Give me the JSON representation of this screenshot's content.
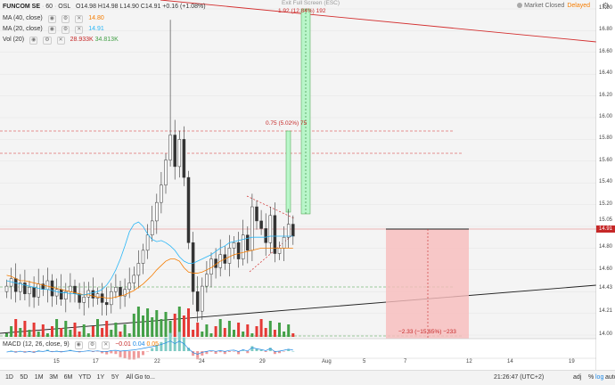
{
  "legend": {
    "symbol": "FUNCOM SE",
    "interval": "60",
    "exchange": "OSL",
    "ohlc": "O14.98  H14.98  L14.90  C14.91  +0.16 (+1.08%)",
    "ma40_label": "MA (40, close)",
    "ma40_value": "14.80",
    "ma20_label": "MA (20, close)",
    "ma20_value": "14.91",
    "vol_label": "Vol (20)",
    "vol_value1": "28.933K",
    "vol_value2": "34.813K",
    "macd_label": "MACD (12, 26, close, 9)",
    "macd_v1": "−0.01",
    "macd_v2": "0.04",
    "macd_v3": "0.05"
  },
  "status": {
    "market": "Market Closed",
    "delayed": "Delayed"
  },
  "y_axis_labels": [
    "17.00",
    "16.80",
    "16.60",
    "16.40",
    "16.20",
    "16.00",
    "15.80",
    "15.60",
    "15.40",
    "15.20",
    "15.05",
    "14.80",
    "14.60",
    "14.43",
    "14.21",
    "14.00"
  ],
  "current_price": "14.91",
  "x_axis_labels": [
    "15",
    "17",
    "22",
    "24",
    "29",
    "Aug",
    "5",
    "7",
    "12",
    "14",
    "19"
  ],
  "annotations": {
    "exit": "Exit Full Screen (ESC)",
    "long1": "1.92 (12.84%) 192",
    "long2": "0.75 (5.02%) 75",
    "short": "−2.33 (−15.65%) −233"
  },
  "bottombar": {
    "timeframes": [
      "1D",
      "5D",
      "1M",
      "3M",
      "6M",
      "YTD",
      "1Y",
      "5Y",
      "All"
    ],
    "goto": "Go to...",
    "clock": "21:26:47 (UTC+2)",
    "options": [
      "%",
      "log",
      "auto"
    ],
    "adj": "adj"
  },
  "colors": {
    "up": "#2e7d32",
    "down": "#c62828",
    "ma40": "#f57c00",
    "ma20": "#29b6f6",
    "vol_up": "#43a047",
    "vol_down": "#e53935"
  },
  "chart_data": {
    "type": "candlestick",
    "y_range": [
      14.0,
      17.0
    ],
    "closes": [
      14.45,
      14.52,
      14.4,
      14.48,
      14.38,
      14.44,
      14.35,
      14.47,
      14.42,
      14.5,
      14.36,
      14.42,
      14.33,
      14.4,
      14.45,
      14.38,
      14.3,
      14.35,
      14.41,
      14.34,
      14.38,
      14.3,
      14.28,
      14.4,
      14.44,
      14.36,
      14.42,
      14.48,
      14.55,
      14.66,
      14.78,
      14.92,
      15.05,
      15.22,
      15.38,
      15.61,
      15.84,
      15.55,
      15.8,
      15.45,
      14.85,
      14.4,
      14.22,
      14.45,
      14.56,
      14.7,
      14.62,
      14.74,
      14.66,
      14.8,
      14.85,
      14.7,
      14.92,
      14.78,
      15.18,
      15.05,
      14.98,
      14.85,
      15.1,
      14.75,
      14.8,
      14.9,
      15.02,
      14.91
    ],
    "ma40": [
      14.55,
      14.54,
      14.52,
      14.5,
      14.5,
      14.49,
      14.48,
      14.47,
      14.46,
      14.45,
      14.44,
      14.43,
      14.42,
      14.41,
      14.4,
      14.39,
      14.38,
      14.37,
      14.37,
      14.36,
      14.35,
      14.35,
      14.34,
      14.34,
      14.35,
      14.36,
      14.37,
      14.39,
      14.41,
      14.44,
      14.47,
      14.51,
      14.55,
      14.6,
      14.64,
      14.68,
      14.7,
      14.7,
      14.68,
      14.62,
      14.58,
      14.57,
      14.57,
      14.58,
      14.6,
      14.62,
      14.65,
      14.68,
      14.7,
      14.72,
      14.74,
      14.75,
      14.76,
      14.77,
      14.78,
      14.79,
      14.8,
      14.8,
      14.8,
      14.8,
      14.8,
      14.8,
      14.8,
      14.8
    ],
    "ma20": [
      14.5,
      14.49,
      14.48,
      14.47,
      14.46,
      14.45,
      14.44,
      14.43,
      14.42,
      14.42,
      14.41,
      14.4,
      14.39,
      14.39,
      14.38,
      14.38,
      14.37,
      14.37,
      14.38,
      14.39,
      14.4,
      14.42,
      14.46,
      14.52,
      14.6,
      14.7,
      14.82,
      14.95,
      15.02,
      15.04,
      15.0,
      14.93,
      14.88,
      14.86,
      14.87,
      14.85,
      14.82,
      14.78,
      14.72,
      14.68,
      14.66,
      14.66,
      14.68,
      14.7,
      14.72,
      14.74,
      14.77,
      14.8,
      14.82,
      14.85,
      14.86,
      14.87,
      14.88,
      14.89,
      14.9,
      14.9,
      14.9,
      14.9,
      14.91,
      14.91,
      14.91,
      14.91,
      14.91,
      14.91
    ],
    "x_labels": [
      "15",
      "17",
      "22",
      "24",
      "29",
      "Aug",
      "5",
      "7",
      "12",
      "14",
      "19"
    ]
  }
}
